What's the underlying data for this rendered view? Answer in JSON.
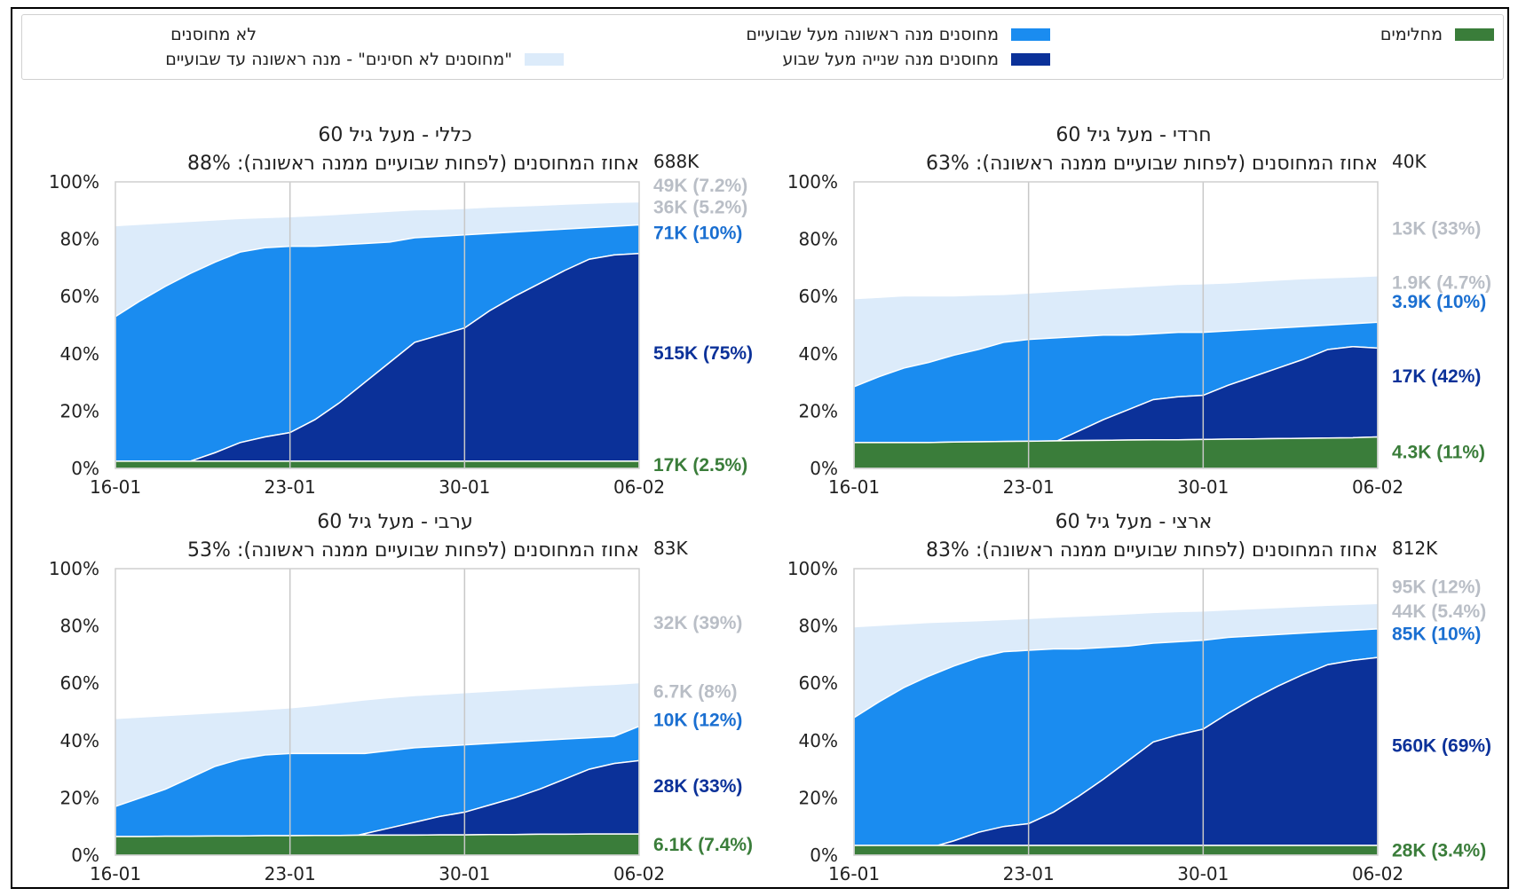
{
  "legend": {
    "items": [
      {
        "label": "לא מחוסנים",
        "color": "#ffffff"
      },
      {
        "label": "\"מחוסנים לא חסינים\" - מנה ראשונה עד שבועיים",
        "color": "#dcebfa"
      },
      {
        "label": "מחוסנים מנה ראשונה מעל שבועיים",
        "color": "#1a8cf0"
      },
      {
        "label": "מחוסנים מנה שנייה מעל שבוע",
        "color": "#0b3199"
      },
      {
        "label": "מחלימים",
        "color": "#3a7d3a"
      }
    ]
  },
  "x_ticks": [
    "16-01",
    "23-01",
    "30-01",
    "06-02"
  ],
  "y_ticks": [
    "0%",
    "20%",
    "40%",
    "60%",
    "80%",
    "100%"
  ],
  "colors": {
    "recovered": "#3a7d3a",
    "second": "#0b3199",
    "first": "#1a8cf0",
    "early": "#dcebfa",
    "label_gray": "#b9bec6",
    "grid": "#c8c8c8"
  },
  "chart_data": [
    {
      "type": "area",
      "title": "כללי - מעל גיל 60",
      "subtitle": "אחוז המחוסנים (לפחות שבועיים ממנה ראשונה): 88%",
      "total_label": "688K",
      "x": [
        "16-01",
        "17-01",
        "18-01",
        "19-01",
        "20-01",
        "21-01",
        "22-01",
        "23-01",
        "24-01",
        "25-01",
        "26-01",
        "27-01",
        "28-01",
        "29-01",
        "30-01",
        "31-01",
        "01-02",
        "02-02",
        "03-02",
        "04-02",
        "05-02",
        "06-02"
      ],
      "ylim": [
        0,
        100
      ],
      "series": [
        {
          "name": "מחלימים",
          "values": [
            2.5,
            2.5,
            2.5,
            2.5,
            2.5,
            2.5,
            2.5,
            2.5,
            2.5,
            2.5,
            2.5,
            2.5,
            2.5,
            2.5,
            2.5,
            2.5,
            2.5,
            2.5,
            2.5,
            2.5,
            2.5,
            2.5
          ]
        },
        {
          "name": "מחוסנים מנה שנייה מעל שבוע",
          "values": [
            0,
            0.5,
            1,
            2.5,
            5.5,
            9,
            11,
            12.5,
            17,
            23,
            30,
            37,
            44,
            46.5,
            49,
            55,
            60,
            64.5,
            69,
            73,
            74.5,
            75
          ]
        },
        {
          "name": "מחוסנים מנה ראשונה מעל שבועיים",
          "values": [
            53,
            58.5,
            63.5,
            68,
            72,
            75.5,
            77,
            77.5,
            77.5,
            78,
            78.5,
            79,
            80.5,
            81,
            81.5,
            82,
            82.5,
            83,
            83.5,
            84,
            84.5,
            85
          ]
        },
        {
          "name": "\"מחוסנים לא חסינים\" - מנה ראשונה עד שבועיים",
          "values": [
            84.5,
            85,
            85.5,
            86,
            86.5,
            87,
            87.3,
            87.6,
            88,
            88.5,
            89,
            89.5,
            90,
            90.2,
            90.5,
            91,
            91.3,
            91.6,
            92,
            92.3,
            92.6,
            92.8
          ]
        }
      ],
      "end_labels": [
        {
          "text": "49K (7.2%)",
          "color": "#b9bec6",
          "value": 99
        },
        {
          "text": "36K (5.2%)",
          "color": "#b9bec6",
          "value": 91.5
        },
        {
          "text": "71K (10%)",
          "color": "#1a6fd1",
          "value": 82.5
        },
        {
          "text": "515K (75%)",
          "color": "#0b3199",
          "value": 40.5
        },
        {
          "text": "17K (2.5%)",
          "color": "#3a7d3a",
          "value": 1.5
        }
      ]
    },
    {
      "type": "area",
      "title": "חרדי - מעל גיל 60",
      "subtitle": "אחוז המחוסנים (לפחות שבועיים ממנה ראשונה): 63%",
      "total_label": "40K",
      "x": [
        "16-01",
        "17-01",
        "18-01",
        "19-01",
        "20-01",
        "21-01",
        "22-01",
        "23-01",
        "24-01",
        "25-01",
        "26-01",
        "27-01",
        "28-01",
        "29-01",
        "30-01",
        "31-01",
        "01-02",
        "02-02",
        "03-02",
        "04-02",
        "05-02",
        "06-02"
      ],
      "ylim": [
        0,
        100
      ],
      "series": [
        {
          "name": "מחלימים",
          "values": [
            9,
            9,
            9,
            9,
            9.2,
            9.3,
            9.4,
            9.5,
            9.6,
            9.7,
            9.8,
            9.9,
            10,
            10,
            10.1,
            10.2,
            10.3,
            10.4,
            10.5,
            10.6,
            10.7,
            11
          ]
        },
        {
          "name": "מחוסנים מנה שנייה מעל שבוע",
          "values": [
            1,
            1,
            1.5,
            3,
            4.5,
            5.5,
            6,
            6.5,
            9,
            13,
            17,
            20.5,
            24,
            25,
            25.5,
            29,
            32,
            35,
            38,
            41.5,
            42.5,
            42
          ]
        },
        {
          "name": "מחוסנים מנה ראשונה מעל שבועיים",
          "values": [
            28.5,
            32,
            35,
            37,
            39.5,
            41.5,
            44,
            45,
            45.5,
            46,
            46.5,
            46.5,
            47,
            47.5,
            47.5,
            48,
            48.5,
            49,
            49.5,
            50,
            50.5,
            51
          ]
        },
        {
          "name": "\"מחוסנים לא חסינים\" - מנה ראשונה עד שבועיים",
          "values": [
            59,
            59.5,
            60,
            60,
            60,
            60.3,
            60.5,
            61,
            61.5,
            62,
            62.5,
            63,
            63.5,
            64,
            64.2,
            64.5,
            65,
            65.5,
            66,
            66.3,
            66.6,
            67
          ]
        }
      ],
      "end_labels": [
        {
          "text": "13K (33%)",
          "color": "#b9bec6",
          "value": 84
        },
        {
          "text": "1.9K (4.7%)",
          "color": "#b9bec6",
          "value": 65.2
        },
        {
          "text": "3.9K (10%)",
          "color": "#1a6fd1",
          "value": 58.5
        },
        {
          "text": "17K (42%)",
          "color": "#0b3199",
          "value": 32.5
        },
        {
          "text": "4.3K (11%)",
          "color": "#3a7d3a",
          "value": 6
        }
      ]
    },
    {
      "type": "area",
      "title": "ערבי - מעל גיל 60",
      "subtitle": "אחוז המחוסנים (לפחות שבועיים ממנה ראשונה): 53%",
      "total_label": "83K",
      "x": [
        "16-01",
        "17-01",
        "18-01",
        "19-01",
        "20-01",
        "21-01",
        "22-01",
        "23-01",
        "24-01",
        "25-01",
        "26-01",
        "27-01",
        "28-01",
        "29-01",
        "30-01",
        "31-01",
        "01-02",
        "02-02",
        "03-02",
        "04-02",
        "05-02",
        "06-02"
      ],
      "ylim": [
        0,
        100
      ],
      "series": [
        {
          "name": "מחלימים",
          "values": [
            6.5,
            6.5,
            6.6,
            6.6,
            6.7,
            6.7,
            6.8,
            6.8,
            6.9,
            6.9,
            7,
            7,
            7,
            7.1,
            7.1,
            7.2,
            7.2,
            7.3,
            7.3,
            7.4,
            7.4,
            7.4
          ]
        },
        {
          "name": "מחוסנים מנה שנייה מעל שבוע",
          "values": [
            0.5,
            0.5,
            0.8,
            1,
            1.5,
            2,
            2.5,
            3,
            4,
            5.5,
            7.5,
            9.5,
            11.5,
            13.5,
            15,
            17.5,
            20,
            23,
            26.5,
            30,
            32,
            33
          ]
        },
        {
          "name": "מחוסנים מנה ראשונה מעל שבועיים",
          "values": [
            17,
            20,
            23,
            27,
            31,
            33.5,
            35,
            35.5,
            35.5,
            35.5,
            35.5,
            36.5,
            37.5,
            38,
            38.5,
            39,
            39.5,
            40,
            40.5,
            41,
            41.5,
            45
          ]
        },
        {
          "name": "\"מחוסנים לא חסינים\" - מנה ראשונה עד שבועיים",
          "values": [
            47.5,
            48,
            48.5,
            49,
            49.5,
            50,
            50.6,
            51.2,
            52,
            53,
            54,
            54.8,
            55.5,
            56,
            56.5,
            57,
            57.5,
            58,
            58.5,
            59,
            59.4,
            60
          ]
        }
      ],
      "end_labels": [
        {
          "text": "32K (39%)",
          "color": "#b9bec6",
          "value": 81.5
        },
        {
          "text": "6.7K (8%)",
          "color": "#b9bec6",
          "value": 57.5
        },
        {
          "text": "10K (12%)",
          "color": "#1a6fd1",
          "value": 47.5
        },
        {
          "text": "28K (33%)",
          "color": "#0b3199",
          "value": 24.5
        },
        {
          "text": "6.1K (7.4%)",
          "color": "#3a7d3a",
          "value": 4
        }
      ]
    },
    {
      "type": "area",
      "title": "ארצי - מעל גיל 60",
      "subtitle": "אחוז המחוסנים (לפחות שבועיים ממנה ראשונה): 83%",
      "total_label": "812K",
      "x": [
        "16-01",
        "17-01",
        "18-01",
        "19-01",
        "20-01",
        "21-01",
        "22-01",
        "23-01",
        "24-01",
        "25-01",
        "26-01",
        "27-01",
        "28-01",
        "29-01",
        "30-01",
        "31-01",
        "01-02",
        "02-02",
        "03-02",
        "04-02",
        "05-02",
        "06-02"
      ],
      "ylim": [
        0,
        100
      ],
      "series": [
        {
          "name": "מחלימים",
          "values": [
            3.4,
            3.4,
            3.4,
            3.4,
            3.4,
            3.4,
            3.4,
            3.4,
            3.4,
            3.4,
            3.4,
            3.4,
            3.4,
            3.4,
            3.4,
            3.4,
            3.4,
            3.4,
            3.4,
            3.4,
            3.4,
            3.4
          ]
        },
        {
          "name": "מחוסנים מנה שנייה מעל שבוע",
          "values": [
            0,
            0.5,
            1,
            2.5,
            5,
            8,
            10,
            11,
            15,
            20.5,
            26.5,
            33,
            39.5,
            42,
            44,
            49.5,
            54.5,
            59,
            63,
            66.5,
            68,
            69
          ]
        },
        {
          "name": "מחוסנים מנה ראשונה מעל שבועיים",
          "values": [
            48,
            53.5,
            58.5,
            62.5,
            66,
            69,
            71,
            71.5,
            72,
            72,
            72.5,
            73,
            74,
            74.5,
            75,
            76,
            76.5,
            77,
            77.5,
            78,
            78.5,
            79
          ]
        },
        {
          "name": "\"מחוסנים לא חסינים\" - מנה ראשונה עד שבועיים",
          "values": [
            79.5,
            80,
            80.5,
            81,
            81.3,
            81.6,
            82,
            82.4,
            82.8,
            83.2,
            83.6,
            84,
            84.5,
            84.8,
            85,
            85.4,
            85.8,
            86.2,
            86.6,
            87,
            87.3,
            87.6
          ]
        }
      ],
      "end_labels": [
        {
          "text": "95K (12%)",
          "color": "#b9bec6",
          "value": 94
        },
        {
          "text": "44K (5.4%)",
          "color": "#b9bec6",
          "value": 85.5
        },
        {
          "text": "85K (10%)",
          "color": "#1a6fd1",
          "value": 77.5
        },
        {
          "text": "560K (69%)",
          "color": "#0b3199",
          "value": 38.5
        },
        {
          "text": "28K (3.4%)",
          "color": "#3a7d3a",
          "value": 2
        }
      ]
    }
  ]
}
